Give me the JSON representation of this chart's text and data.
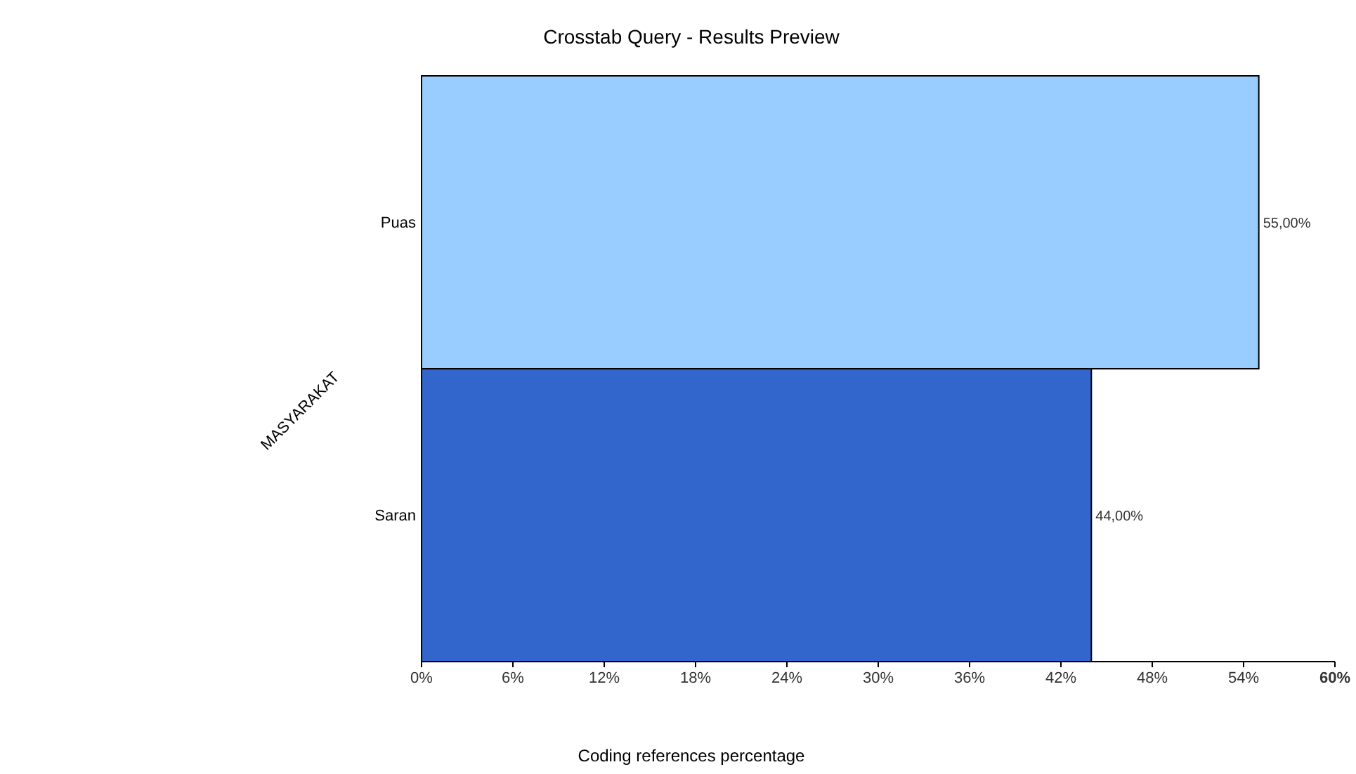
{
  "chart_data": {
    "type": "bar",
    "orientation": "horizontal",
    "title": "Crosstab Query - Results Preview",
    "xlabel": "Coding references percentage",
    "ylabel": "MASYARAKAT",
    "categories": [
      "Puas",
      "Saran"
    ],
    "values": [
      55,
      44
    ],
    "colors": [
      "#99ccff",
      "#3366cc"
    ],
    "value_labels": [
      "55,00%",
      "44,00%"
    ],
    "xlim": [
      0,
      60
    ],
    "xticks": [
      {
        "value": 0,
        "label": "0%"
      },
      {
        "value": 6,
        "label": "6%"
      },
      {
        "value": 12,
        "label": "12%"
      },
      {
        "value": 18,
        "label": "18%"
      },
      {
        "value": 24,
        "label": "24%"
      },
      {
        "value": 30,
        "label": "30%"
      },
      {
        "value": 36,
        "label": "36%"
      },
      {
        "value": 42,
        "label": "42%"
      },
      {
        "value": 48,
        "label": "48%"
      },
      {
        "value": 54,
        "label": "54%"
      },
      {
        "value": 60,
        "label": "60%"
      }
    ],
    "grid": false
  }
}
